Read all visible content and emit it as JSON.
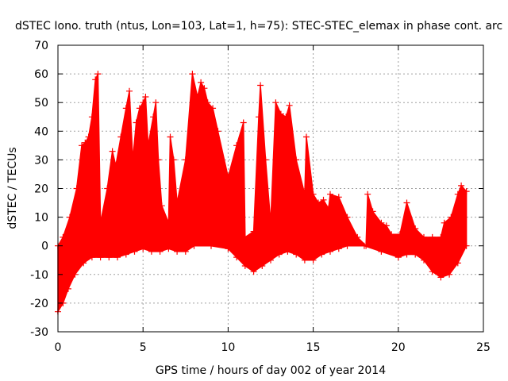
{
  "chart_data": {
    "type": "scatter",
    "title": "dSTEC Iono. truth (ntus, Lon=103, Lat=1, h=75): STEC-STEC_elemax in phase cont. arc",
    "xlabel": "GPS time / hours of day 002 of year 2014",
    "ylabel": "dSTEC  / TECUs",
    "xlim": [
      0,
      25
    ],
    "ylim": [
      -30,
      70
    ],
    "xticks": [
      0,
      5,
      10,
      15,
      20,
      25
    ],
    "yticks": [
      -30,
      -20,
      -10,
      0,
      10,
      20,
      30,
      40,
      50,
      60,
      70
    ],
    "grid": true,
    "marker": "+",
    "series_color": "#ff0000",
    "series": [
      {
        "name": "STEC-STEC_elemax",
        "upper_envelope": [
          [
            0.0,
            0
          ],
          [
            0.3,
            3
          ],
          [
            0.7,
            10
          ],
          [
            1.1,
            20
          ],
          [
            1.4,
            35
          ],
          [
            1.6,
            36
          ],
          [
            1.8,
            38
          ],
          [
            2.0,
            45
          ],
          [
            2.2,
            58
          ],
          [
            2.35,
            60
          ],
          [
            2.5,
            8
          ],
          [
            2.9,
            20
          ],
          [
            3.2,
            33
          ],
          [
            3.4,
            28
          ],
          [
            3.7,
            38
          ],
          [
            4.0,
            48
          ],
          [
            4.2,
            54
          ],
          [
            4.4,
            30
          ],
          [
            4.6,
            43
          ],
          [
            4.8,
            48
          ],
          [
            5.0,
            50
          ],
          [
            5.15,
            52
          ],
          [
            5.3,
            35
          ],
          [
            5.6,
            45
          ],
          [
            5.75,
            50
          ],
          [
            5.9,
            30
          ],
          [
            6.1,
            14
          ],
          [
            6.5,
            8
          ],
          [
            6.6,
            38
          ],
          [
            6.8,
            30
          ],
          [
            7.0,
            15
          ],
          [
            7.5,
            30
          ],
          [
            7.9,
            60
          ],
          [
            8.2,
            52
          ],
          [
            8.4,
            57
          ],
          [
            8.6,
            55
          ],
          [
            8.8,
            50
          ],
          [
            9.1,
            48
          ],
          [
            9.4,
            40
          ],
          [
            10.0,
            24
          ],
          [
            10.5,
            35
          ],
          [
            10.9,
            43
          ],
          [
            11.0,
            3
          ],
          [
            11.5,
            5
          ],
          [
            11.8,
            45
          ],
          [
            11.9,
            56
          ],
          [
            12.2,
            30
          ],
          [
            12.5,
            8
          ],
          [
            12.8,
            50
          ],
          [
            13.1,
            46
          ],
          [
            13.4,
            45
          ],
          [
            13.6,
            49
          ],
          [
            14.0,
            30
          ],
          [
            14.5,
            18
          ],
          [
            14.6,
            38
          ],
          [
            15.0,
            18
          ],
          [
            15.3,
            15
          ],
          [
            15.6,
            16
          ],
          [
            15.9,
            13
          ],
          [
            16.0,
            18
          ],
          [
            16.5,
            17
          ],
          [
            17.0,
            10
          ],
          [
            17.6,
            3
          ],
          [
            18.1,
            0
          ],
          [
            18.2,
            18
          ],
          [
            18.5,
            12
          ],
          [
            19.0,
            8
          ],
          [
            19.3,
            7
          ],
          [
            19.6,
            4
          ],
          [
            20.1,
            4
          ],
          [
            20.5,
            15
          ],
          [
            21.0,
            6
          ],
          [
            21.5,
            3
          ],
          [
            22.0,
            3
          ],
          [
            22.5,
            3
          ],
          [
            22.7,
            8
          ],
          [
            23.1,
            10
          ],
          [
            23.5,
            18
          ],
          [
            23.7,
            21
          ],
          [
            24.0,
            19
          ]
        ],
        "lower_envelope": [
          [
            0.0,
            -23
          ],
          [
            0.3,
            -20
          ],
          [
            0.6,
            -15
          ],
          [
            1.0,
            -10
          ],
          [
            1.5,
            -6
          ],
          [
            2.0,
            -4
          ],
          [
            2.5,
            -4
          ],
          [
            3.0,
            -4
          ],
          [
            3.5,
            -4
          ],
          [
            4.0,
            -3
          ],
          [
            4.5,
            -2
          ],
          [
            5.0,
            -1
          ],
          [
            5.5,
            -2
          ],
          [
            6.0,
            -2
          ],
          [
            6.5,
            -1
          ],
          [
            7.0,
            -2
          ],
          [
            7.5,
            -2
          ],
          [
            8.0,
            0
          ],
          [
            9.0,
            0
          ],
          [
            10.0,
            -1
          ],
          [
            10.5,
            -4
          ],
          [
            11.0,
            -7
          ],
          [
            11.5,
            -9
          ],
          [
            12.0,
            -7
          ],
          [
            12.5,
            -5
          ],
          [
            13.0,
            -3
          ],
          [
            13.5,
            -2
          ],
          [
            14.0,
            -3
          ],
          [
            14.5,
            -5
          ],
          [
            15.0,
            -5
          ],
          [
            15.5,
            -3
          ],
          [
            16.0,
            -2
          ],
          [
            16.5,
            -1
          ],
          [
            17.0,
            0
          ],
          [
            18.0,
            0
          ],
          [
            19.0,
            -2
          ],
          [
            20.0,
            -4
          ],
          [
            20.5,
            -3
          ],
          [
            21.0,
            -3
          ],
          [
            21.5,
            -5
          ],
          [
            22.0,
            -9
          ],
          [
            22.5,
            -11
          ],
          [
            23.0,
            -10
          ],
          [
            23.5,
            -6
          ],
          [
            24.0,
            0
          ]
        ]
      }
    ]
  }
}
